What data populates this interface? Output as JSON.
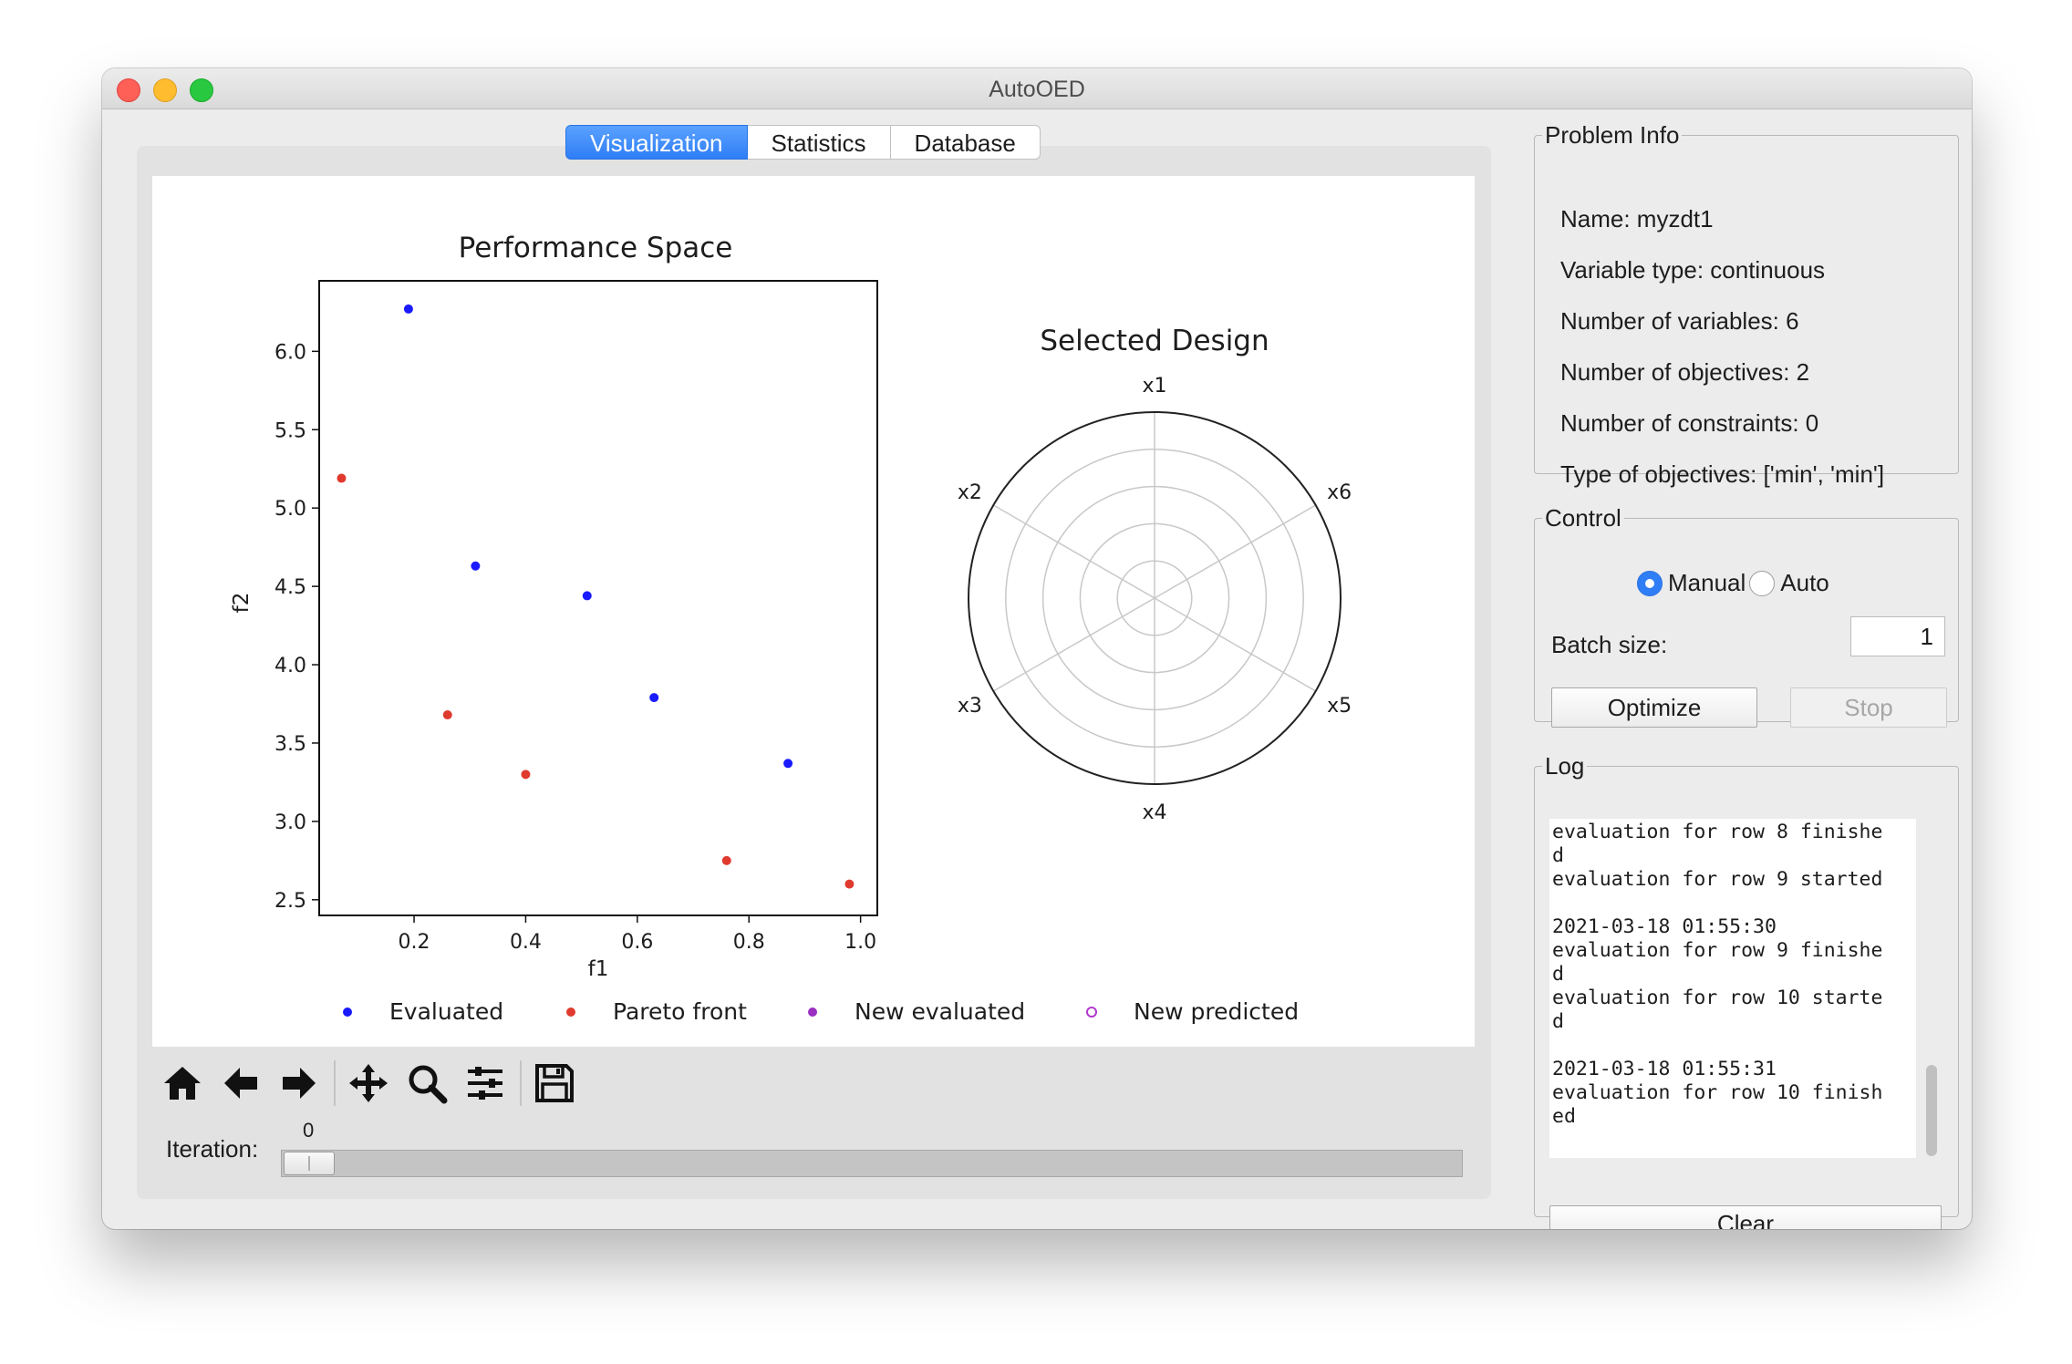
{
  "window": {
    "title": "AutoOED"
  },
  "tabs": [
    "Visualization",
    "Statistics",
    "Database"
  ],
  "colors": {
    "accent": "#2f7ef6",
    "evaluated": "#1a1aff",
    "pareto": "#e03a2f",
    "new_evaluated": "#9a2fc0",
    "new_predicted": "#b03acb"
  },
  "chart_data": [
    {
      "type": "scatter",
      "title": "Performance Space",
      "xlabel": "f1",
      "ylabel": "f2",
      "xlim": [
        0.03,
        1.03
      ],
      "ylim": [
        2.4,
        6.45
      ],
      "xticks": [
        "0.2",
        "0.4",
        "0.6",
        "0.8",
        "1.0"
      ],
      "yticks": [
        "2.5",
        "3.0",
        "3.5",
        "4.0",
        "4.5",
        "5.0",
        "5.5",
        "6.0"
      ],
      "series": [
        {
          "name": "Evaluated",
          "color": "#1a1aff",
          "points": [
            [
              0.19,
              6.27
            ],
            [
              0.31,
              4.63
            ],
            [
              0.51,
              4.44
            ],
            [
              0.63,
              3.79
            ],
            [
              0.87,
              3.37
            ]
          ]
        },
        {
          "name": "Pareto front",
          "color": "#e03a2f",
          "points": [
            [
              0.07,
              5.19
            ],
            [
              0.26,
              3.68
            ],
            [
              0.4,
              3.3
            ],
            [
              0.76,
              2.75
            ],
            [
              0.98,
              2.6
            ]
          ]
        },
        {
          "name": "New evaluated",
          "color": "#9a2fc0",
          "points": []
        },
        {
          "name": "New predicted",
          "color": "#b03acb",
          "points": []
        }
      ]
    },
    {
      "type": "radar",
      "title": "Selected Design",
      "axes": [
        "x1",
        "x2",
        "x3",
        "x4",
        "x5",
        "x6"
      ],
      "values": []
    }
  ],
  "toolbar": {
    "icons": [
      "home-icon",
      "back-arrow-icon",
      "forward-arrow-icon",
      "pan-icon",
      "zoom-icon",
      "configure-subplots-icon",
      "save-icon"
    ]
  },
  "iteration": {
    "label": "Iteration:",
    "value": "0"
  },
  "problem_info": {
    "legend": "Problem Info",
    "lines": [
      "Name: myzdt1",
      "Variable type: continuous",
      "Number of variables: 6",
      "Number of objectives: 2",
      "Number of constraints: 0",
      "Type of objectives: ['min', 'min']"
    ]
  },
  "control": {
    "legend": "Control",
    "mode_manual": "Manual",
    "mode_auto": "Auto",
    "selected_mode": "Manual",
    "batch_label": "Batch size:",
    "batch_value": "1",
    "optimize_label": "Optimize",
    "stop_label": "Stop"
  },
  "log": {
    "legend": "Log",
    "text": "evaluation for row 8 finishe\nd\nevaluation for row 9 started\n\n2021-03-18 01:55:30\nevaluation for row 9 finishe\nd\nevaluation for row 10 starte\nd\n\n2021-03-18 01:55:31\nevaluation for row 10 finish\ned",
    "clear_label": "Clear"
  }
}
